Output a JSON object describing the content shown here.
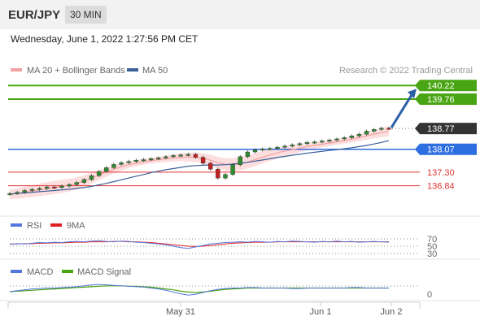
{
  "header": {
    "symbol": "EUR/JPY",
    "timeframe": "30 MIN",
    "datetime": "Wednesday, June 1, 2022 1:27:56 PM CET"
  },
  "price_panel": {
    "legend": [
      {
        "label": "MA 20 + Bollinger Bands",
        "color": "#f4a0a0"
      },
      {
        "label": "MA 50",
        "color": "#3b5f9b"
      }
    ],
    "credit": "Research © 2022 Trading Central",
    "levels": [
      {
        "value": 140.22,
        "label": "140.22",
        "kind": "resistance-box",
        "color": "#4aa514"
      },
      {
        "value": 139.76,
        "label": "139.76",
        "kind": "resistance-box",
        "color": "#4aa514"
      },
      {
        "value": 138.77,
        "label": "138.77",
        "kind": "last-price",
        "color": "#333333"
      },
      {
        "value": 138.07,
        "label": "138.07",
        "kind": "pivot",
        "color": "#2d6ee0"
      },
      {
        "value": 137.3,
        "label": "137.30",
        "kind": "support",
        "color": "#e03030"
      },
      {
        "value": 136.84,
        "label": "136.84",
        "kind": "support",
        "color": "#e03030"
      }
    ]
  },
  "rsi_panel": {
    "legend": [
      {
        "label": "RSI",
        "color": "#5577dd"
      },
      {
        "label": "9MA",
        "color": "#e02020"
      }
    ],
    "levels": [
      "70",
      "50",
      "30"
    ]
  },
  "macd_panel": {
    "legend": [
      {
        "label": "MACD",
        "color": "#5577dd"
      },
      {
        "label": "MACD Signal",
        "color": "#4aa514"
      }
    ],
    "zero_label": "0"
  },
  "x_axis": {
    "ticks": [
      "May 31",
      "Jun 1",
      "Jun 2"
    ]
  },
  "chart_data": [
    {
      "type": "candlestick",
      "title": "EUR/JPY",
      "ylim": [
        136.2,
        140.5
      ],
      "series": [
        {
          "name": "Price (close)",
          "values": [
            136.58,
            136.62,
            136.68,
            136.72,
            136.75,
            136.8,
            136.78,
            136.83,
            136.88,
            136.95,
            137.05,
            137.18,
            137.32,
            137.45,
            137.56,
            137.62,
            137.66,
            137.7,
            137.72,
            137.75,
            137.78,
            137.82,
            137.86,
            137.88,
            137.9,
            137.8,
            137.6,
            137.4,
            137.1,
            137.22,
            137.55,
            137.82,
            137.98,
            138.05,
            138.08,
            138.1,
            138.14,
            138.18,
            138.22,
            138.26,
            138.3,
            138.32,
            138.35,
            138.38,
            138.42,
            138.46,
            138.52,
            138.58,
            138.68,
            138.74,
            138.78,
            138.77
          ]
        },
        {
          "name": "MA 20",
          "values": [
            136.55,
            136.58,
            136.62,
            136.66,
            136.7,
            136.74,
            136.78,
            136.82,
            136.86,
            136.92,
            137.0,
            137.1,
            137.2,
            137.3,
            137.4,
            137.48,
            137.55,
            137.6,
            137.65,
            137.69,
            137.72,
            137.75,
            137.78,
            137.8,
            137.81,
            137.8,
            137.76,
            137.7,
            137.62,
            137.56,
            137.55,
            137.58,
            137.64,
            137.72,
            137.8,
            137.88,
            137.95,
            138.01,
            138.06,
            138.11,
            138.16,
            138.2,
            138.24,
            138.28,
            138.32,
            138.36,
            138.41,
            138.46,
            138.52,
            138.58,
            138.63,
            138.68
          ]
        },
        {
          "name": "MA 50",
          "values": [
            136.56,
            136.58,
            136.6,
            136.62,
            136.64,
            136.66,
            136.68,
            136.7,
            136.72,
            136.75,
            136.78,
            136.82,
            136.87,
            136.92,
            136.98,
            137.04,
            137.1,
            137.16,
            137.22,
            137.28,
            137.33,
            137.38,
            137.42,
            137.46,
            137.5,
            137.52,
            137.53,
            137.54,
            137.54,
            137.55,
            137.57,
            137.6,
            137.63,
            137.67,
            137.71,
            137.75,
            137.79,
            137.83,
            137.87,
            137.9,
            137.94,
            137.97,
            138.0,
            138.03,
            138.06,
            138.09,
            138.12,
            138.16,
            138.2,
            138.25,
            138.3,
            138.36
          ]
        }
      ]
    },
    {
      "type": "line",
      "title": "RSI",
      "ylim": [
        20,
        80
      ],
      "series": [
        {
          "name": "RSI",
          "values": [
            55,
            57,
            56,
            58,
            60,
            59,
            61,
            60,
            62,
            63,
            62,
            64,
            65,
            63,
            62,
            64,
            63,
            61,
            60,
            58,
            56,
            54,
            50,
            46,
            44,
            48,
            52,
            56,
            58,
            60,
            61,
            62,
            61,
            63,
            62,
            61,
            63,
            62,
            64,
            63,
            62,
            61,
            63,
            62,
            64,
            62,
            63,
            61,
            62,
            63,
            62,
            61
          ]
        },
        {
          "name": "9MA",
          "values": [
            56,
            56,
            57,
            57,
            58,
            58,
            59,
            59,
            60,
            61,
            61,
            62,
            62,
            62,
            63,
            63,
            62,
            62,
            61,
            60,
            58,
            56,
            54,
            52,
            50,
            49,
            50,
            52,
            54,
            56,
            58,
            59,
            60,
            61,
            61,
            61,
            62,
            62,
            62,
            62,
            62,
            62,
            62,
            62,
            62,
            62,
            62,
            62,
            62,
            62,
            62,
            62
          ]
        }
      ]
    },
    {
      "type": "line",
      "title": "MACD",
      "series": [
        {
          "name": "MACD",
          "values": [
            0.02,
            0.04,
            0.06,
            0.08,
            0.09,
            0.1,
            0.1,
            0.11,
            0.12,
            0.13,
            0.15,
            0.17,
            0.18,
            0.17,
            0.16,
            0.15,
            0.14,
            0.13,
            0.12,
            0.1,
            0.08,
            0.05,
            0.01,
            -0.03,
            -0.06,
            -0.04,
            0.0,
            0.04,
            0.07,
            0.09,
            0.1,
            0.1,
            0.11,
            0.11,
            0.1,
            0.1,
            0.1,
            0.1,
            0.09,
            0.09,
            0.1,
            0.1,
            0.1,
            0.1,
            0.1,
            0.1,
            0.11,
            0.11,
            0.1,
            0.1,
            0.1,
            0.1
          ]
        },
        {
          "name": "MACD Signal",
          "values": [
            0.02,
            0.03,
            0.04,
            0.05,
            0.06,
            0.07,
            0.08,
            0.09,
            0.1,
            0.11,
            0.12,
            0.13,
            0.14,
            0.15,
            0.15,
            0.15,
            0.14,
            0.14,
            0.13,
            0.12,
            0.1,
            0.08,
            0.06,
            0.03,
            0.01,
            0.0,
            0.01,
            0.03,
            0.05,
            0.07,
            0.08,
            0.09,
            0.1,
            0.1,
            0.1,
            0.1,
            0.1,
            0.1,
            0.1,
            0.1,
            0.1,
            0.1,
            0.1,
            0.1,
            0.1,
            0.1,
            0.1,
            0.1,
            0.1,
            0.1,
            0.1,
            0.1
          ]
        }
      ]
    }
  ],
  "colors": {
    "candle_up": "#2e8b2e",
    "candle_down": "#c02020",
    "band_fill": "#fbd6d6",
    "forecast_arrow": "#2d5fa6",
    "panel_separator": "#e3e3e3"
  }
}
